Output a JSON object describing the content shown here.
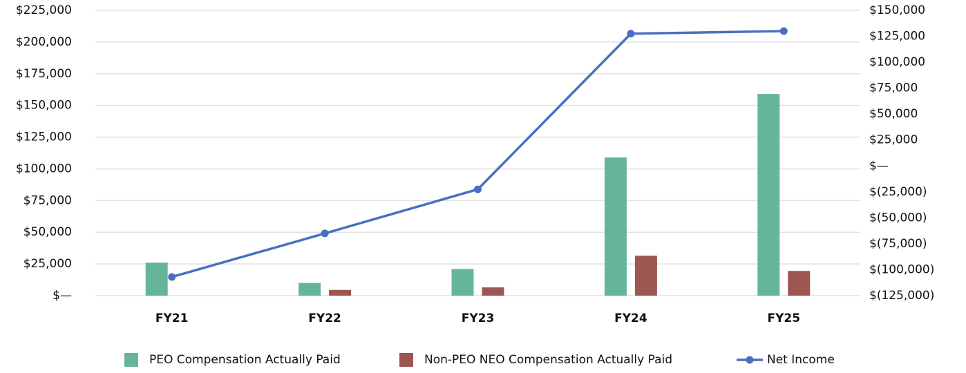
{
  "chart_data": {
    "type": "bar-line",
    "categories": [
      "FY21",
      "FY22",
      "FY23",
      "FY24",
      "FY25"
    ],
    "series": [
      {
        "name": "PEO Compensation Actually Paid",
        "type": "bar",
        "color": "#65b59a",
        "values": [
          26000,
          10000,
          21000,
          109000,
          159000
        ]
      },
      {
        "name": "Non-PEO NEO Compensation Actually Paid",
        "type": "bar",
        "color": "#9e5652",
        "values": [
          null,
          4500,
          6500,
          31500,
          19500
        ]
      },
      {
        "name": "Net Income",
        "type": "line",
        "axis": "y2",
        "color": "#4a6fc1",
        "values": [
          -107000,
          -65000,
          -22500,
          127500,
          130000
        ]
      }
    ],
    "ylim": [
      0,
      225000
    ],
    "yticks": [
      {
        "value": 0,
        "label": "$—"
      },
      {
        "value": 25000,
        "label": "$25,000"
      },
      {
        "value": 50000,
        "label": "$50,000"
      },
      {
        "value": 75000,
        "label": "$75,000"
      },
      {
        "value": 100000,
        "label": "$100,000"
      },
      {
        "value": 125000,
        "label": "$125,000"
      },
      {
        "value": 150000,
        "label": "$150,000"
      },
      {
        "value": 175000,
        "label": "$175,000"
      },
      {
        "value": 200000,
        "label": "$200,000"
      },
      {
        "value": 225000,
        "label": "$225,000"
      }
    ],
    "y2lim": [
      -125000,
      150000
    ],
    "y2ticks": [
      {
        "value": -125000,
        "label": "$(125,000)"
      },
      {
        "value": -100000,
        "label": "$(100,000)"
      },
      {
        "value": -75000,
        "label": "$(75,000)"
      },
      {
        "value": -50000,
        "label": "$(50,000)"
      },
      {
        "value": -25000,
        "label": "$(25,000)"
      },
      {
        "value": 0,
        "label": "$—"
      },
      {
        "value": 25000,
        "label": "$25,000"
      },
      {
        "value": 50000,
        "label": "$50,000"
      },
      {
        "value": 75000,
        "label": "$75,000"
      },
      {
        "value": 100000,
        "label": "$100,000"
      },
      {
        "value": 125000,
        "label": "$125,000"
      },
      {
        "value": 150000,
        "label": "$150,000"
      }
    ],
    "grid": true,
    "legend": "bottom"
  }
}
